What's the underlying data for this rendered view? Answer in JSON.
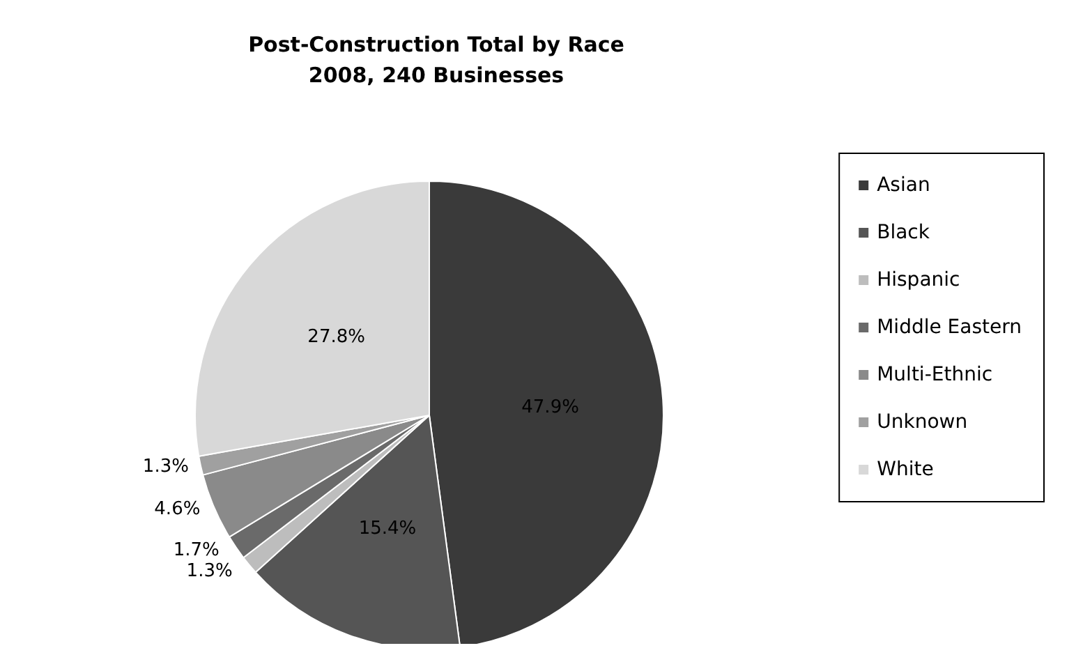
{
  "chart_data": {
    "type": "pie",
    "title": "Post-Construction Total by Race\n2008, 240 Businesses",
    "categories": [
      "Asian",
      "Black",
      "Hispanic",
      "Middle Eastern",
      "Multi-Ethnic",
      "Unknown",
      "White"
    ],
    "values": [
      47.9,
      15.4,
      1.3,
      1.7,
      4.6,
      1.3,
      27.8
    ],
    "colors": [
      "#3a3a3a",
      "#555555",
      "#bdbdbd",
      "#6a6a6a",
      "#8a8a8a",
      "#a0a0a0",
      "#d8d8d8"
    ],
    "value_labels": [
      "47.9%",
      "15.4%",
      "1.3%",
      "1.7%",
      "4.6%",
      "1.3%",
      "27.8%"
    ],
    "legend": "right"
  }
}
